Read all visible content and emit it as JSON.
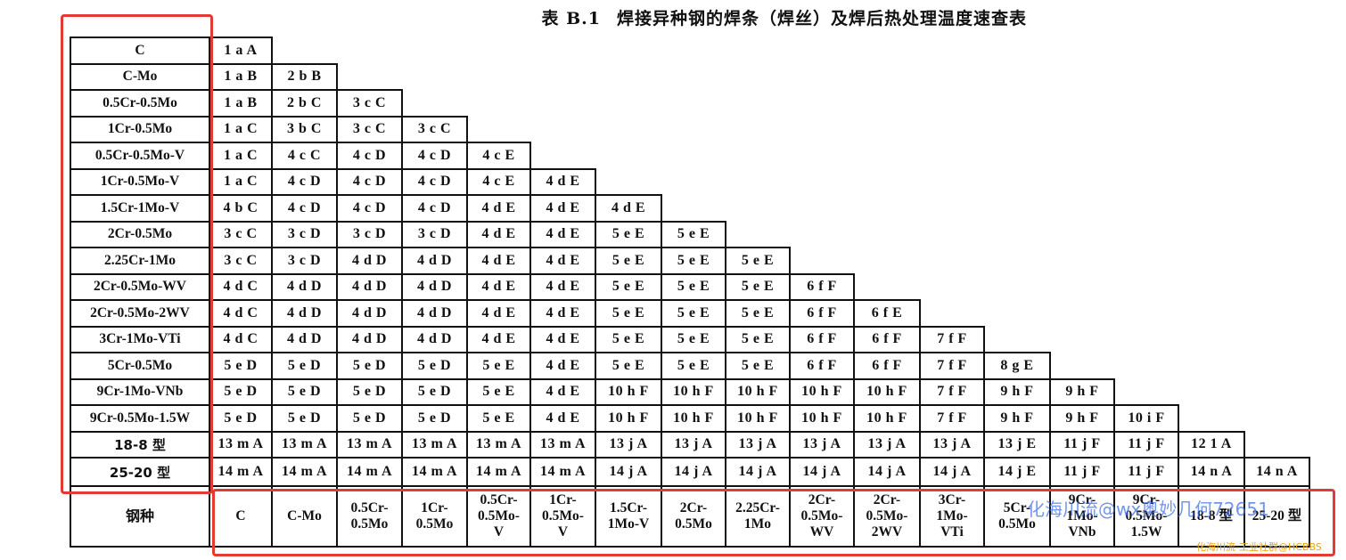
{
  "title": {
    "number": "表 B.1",
    "text": "焊接异种钢的焊条（焊丝）及焊后热处理温度速查表"
  },
  "table": {
    "steel_types": [
      "C",
      "C-Mo",
      "0.5Cr-0.5Mo",
      "1Cr-0.5Mo",
      "0.5Cr-0.5Mo-V",
      "1Cr-0.5Mo-V",
      "1.5Cr-1Mo-V",
      "2Cr-0.5Mo",
      "2.25Cr-1Mo",
      "2Cr-0.5Mo-WV",
      "2Cr-0.5Mo-2WV",
      "3Cr-1Mo-VTi",
      "5Cr-0.5Mo",
      "9Cr-1Mo-VNb",
      "9Cr-0.5Mo-1.5W",
      "18-8 型",
      "25-20 型"
    ],
    "rows": [
      [
        "1 a A"
      ],
      [
        "1 a B",
        "2 b B"
      ],
      [
        "1 a B",
        "2 b C",
        "3 c C"
      ],
      [
        "1 a C",
        "3 b C",
        "3 c C",
        "3 c C"
      ],
      [
        "1 a C",
        "4 c C",
        "4 c D",
        "4 c D",
        "4 c E"
      ],
      [
        "1 a C",
        "4 c D",
        "4 c D",
        "4 c D",
        "4 c E",
        "4 d E"
      ],
      [
        "4 b C",
        "4 c D",
        "4 c D",
        "4 c D",
        "4 d E",
        "4 d E",
        "4 d E"
      ],
      [
        "3 c C",
        "3 c D",
        "3 c D",
        "3 c D",
        "4 d E",
        "4 d E",
        "5 e E",
        "5 e E"
      ],
      [
        "3 c C",
        "3 c D",
        "4 d D",
        "4 d D",
        "4 d E",
        "4 d E",
        "5 e E",
        "5 e E",
        "5 e E"
      ],
      [
        "4 d C",
        "4 d D",
        "4 d D",
        "4 d D",
        "4 d E",
        "4 d E",
        "5 e E",
        "5 e E",
        "5 e E",
        "6 f F"
      ],
      [
        "4 d C",
        "4 d D",
        "4 d D",
        "4 d D",
        "4 d E",
        "4 d E",
        "5 e E",
        "5 e E",
        "5 e E",
        "6 f F",
        "6 f E"
      ],
      [
        "4 d C",
        "4 d D",
        "4 d D",
        "4 d D",
        "4 d E",
        "4 d E",
        "5 e E",
        "5 e E",
        "5 e E",
        "6 f F",
        "6 f F",
        "7 f F"
      ],
      [
        "5 e D",
        "5 e D",
        "5 e D",
        "5 e D",
        "5 e E",
        "4 d E",
        "5 e E",
        "5 e E",
        "5 e E",
        "6 f F",
        "6 f F",
        "7 f F",
        "8 g E"
      ],
      [
        "5 e D",
        "5 e D",
        "5 e D",
        "5 e D",
        "5 e E",
        "4 d E",
        "10 h F",
        "10 h F",
        "10 h F",
        "10 h F",
        "10 h F",
        "7 f F",
        "9 h F",
        "9 h F"
      ],
      [
        "5 e D",
        "5 e D",
        "5 e D",
        "5 e D",
        "5 e E",
        "4 d E",
        "10 h F",
        "10 h F",
        "10 h F",
        "10 h F",
        "10 h F",
        "7 f F",
        "9 h F",
        "9 h F",
        "10 i F"
      ],
      [
        "13 m A",
        "13 m A",
        "13 m A",
        "13 m A",
        "13 m A",
        "13 m A",
        "13 j A",
        "13 j A",
        "13 j A",
        "13 j A",
        "13 j A",
        "13 j A",
        "13 j E",
        "11 j F",
        "11 j F",
        "12 1 A"
      ],
      [
        "14 m A",
        "14 m A",
        "14 m A",
        "14 m A",
        "14 m A",
        "14 m A",
        "14 j A",
        "14 j A",
        "14 j A",
        "14 j A",
        "14 j A",
        "14 j A",
        "14 j E",
        "11 j F",
        "11 j F",
        "14 n A",
        "14 n A"
      ]
    ],
    "footer_label": "钢种",
    "footer_cols": [
      "C",
      "C-Mo",
      "0.5Cr-\n0.5Mo",
      "1Cr-\n0.5Mo",
      "0.5Cr-\n0.5Mo-\nV",
      "1Cr-\n0.5Mo-\nV",
      "1.5Cr-\n1Mo-V",
      "2Cr-\n0.5Mo",
      "2.25Cr-\n1Mo",
      "2Cr-\n0.5Mo-\nWV",
      "2Cr-\n0.5Mo-\n2WV",
      "3Cr-\n1Mo-\nVTi",
      "5Cr-\n0.5Mo",
      "9Cr-\n1Mo-\nVNb",
      "9Cr-\n0.5Mo-\n1.5W",
      "18-8 型",
      "25-20 型"
    ]
  },
  "watermarks": {
    "main": "化海川流@wx奥妙几何72651",
    "small": "化海川流-工业社群@HCBBS"
  },
  "colors": {
    "highlight_box": "#e53935",
    "watermark_blue": "#3c6ee6",
    "watermark_orange": "#e8a317"
  }
}
